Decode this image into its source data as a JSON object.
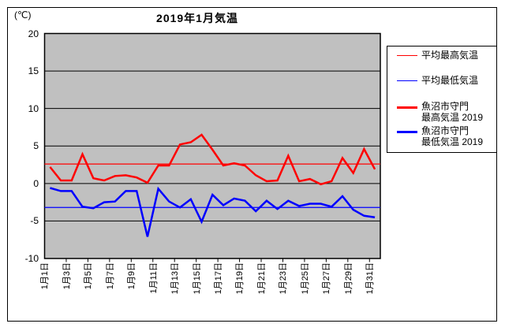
{
  "chart": {
    "title": "2019年1月気温",
    "unit_label": "(℃)",
    "colors": {
      "series_red": "#ff0000",
      "series_blue": "#0000ff",
      "plot_background": "#c0c0c0",
      "gridline": "#000000",
      "legend_background": "#ffffff"
    },
    "legend": {
      "position": "right",
      "items": [
        {
          "label": "平均最高気温",
          "style": "thin-red"
        },
        {
          "label": "平均最低気温",
          "style": "thin-blue"
        },
        {
          "label": "魚沼市守門",
          "label2": "最高気温 2019",
          "style": "thick-red"
        },
        {
          "label": "魚沼市守門",
          "label2": "最低気温 2019",
          "style": "thick-blue"
        }
      ]
    }
  },
  "chart_data": {
    "type": "line",
    "title": "2019年1月気温",
    "ylabel_unit": "(℃)",
    "ylim": [
      -10,
      20
    ],
    "yticks": [
      20,
      15,
      10,
      5,
      0,
      -5,
      -10
    ],
    "grid": "horizontal-only",
    "x_tick_labels": [
      "1月1日",
      "1月3日",
      "1月5日",
      "1月7日",
      "1月9日",
      "1月11日",
      "1月13日",
      "1月15日",
      "1月17日",
      "1月19日",
      "1月21日",
      "1月23日",
      "1月25日",
      "1月27日",
      "1月29日",
      "1月31日"
    ],
    "x_tick_step_days": 2,
    "days_in_month": 31,
    "series": [
      {
        "name": "平均最高気温",
        "style": "thin",
        "color": "#ff0000",
        "constant": 2.6
      },
      {
        "name": "平均最低気温",
        "style": "thin",
        "color": "#0000ff",
        "constant": -3.2
      },
      {
        "name": "魚沼市守門 最高気温 2019",
        "style": "thick",
        "color": "#ff0000",
        "values": [
          2.2,
          0.4,
          0.4,
          3.9,
          0.7,
          0.4,
          1.0,
          1.1,
          0.8,
          0.1,
          2.4,
          2.4,
          5.2,
          5.5,
          6.5,
          4.5,
          2.4,
          2.7,
          2.4,
          1.1,
          0.3,
          0.4,
          3.7,
          0.3,
          0.6,
          -0.1,
          0.3,
          3.4,
          1.4,
          4.6,
          1.9
        ]
      },
      {
        "name": "魚沼市守門 最低気温 2019",
        "style": "thick",
        "color": "#0000ff",
        "values": [
          -0.6,
          -1.0,
          -1.0,
          -3.1,
          -3.3,
          -2.5,
          -2.4,
          -1.0,
          -1.0,
          -7.1,
          -0.7,
          -2.4,
          -3.2,
          -2.1,
          -5.1,
          -1.5,
          -2.9,
          -2.0,
          -2.3,
          -3.7,
          -2.3,
          -3.4,
          -2.3,
          -3.0,
          -2.7,
          -2.7,
          -3.1,
          -1.7,
          -3.5,
          -4.3,
          -4.5
        ]
      }
    ]
  }
}
